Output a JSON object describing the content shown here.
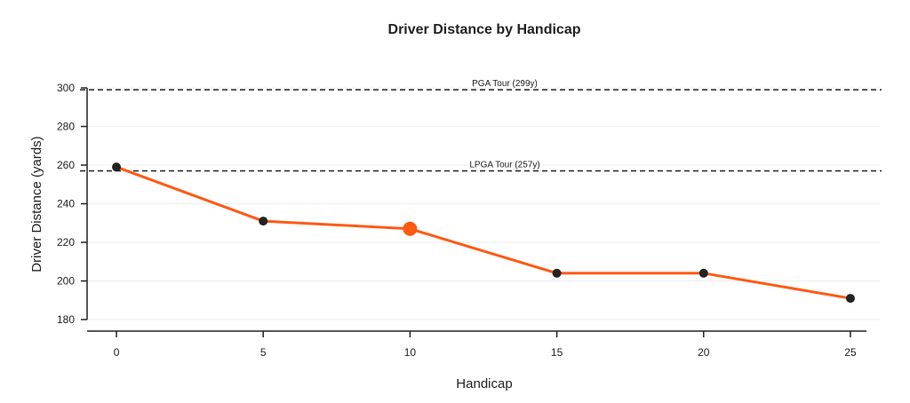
{
  "chart_data": {
    "type": "line",
    "title": "Driver Distance by Handicap",
    "xlabel": "Handicap",
    "ylabel": "Driver Distance (yards)",
    "x": [
      0,
      5,
      10,
      15,
      20,
      25
    ],
    "xticks": [
      0,
      5,
      10,
      15,
      20,
      25
    ],
    "yticks": [
      180,
      200,
      220,
      240,
      260,
      280,
      300
    ],
    "xlim": [
      -1,
      26
    ],
    "ylim": [
      180,
      300
    ],
    "grid": "horizontal",
    "series": [
      {
        "values": [
          259,
          231,
          227,
          204,
          204,
          191
        ],
        "highlight_x": 10
      }
    ],
    "reference_lines": [
      {
        "label": "PGA Tour (299y)",
        "y": 299
      },
      {
        "label": "LPGA Tour (257y)",
        "y": 257
      }
    ],
    "colors": {
      "line": "#ff5a14",
      "marker": "#222222",
      "highlight": "#ff5a14",
      "grid": "#eeeeee",
      "axis": "#222222"
    }
  }
}
